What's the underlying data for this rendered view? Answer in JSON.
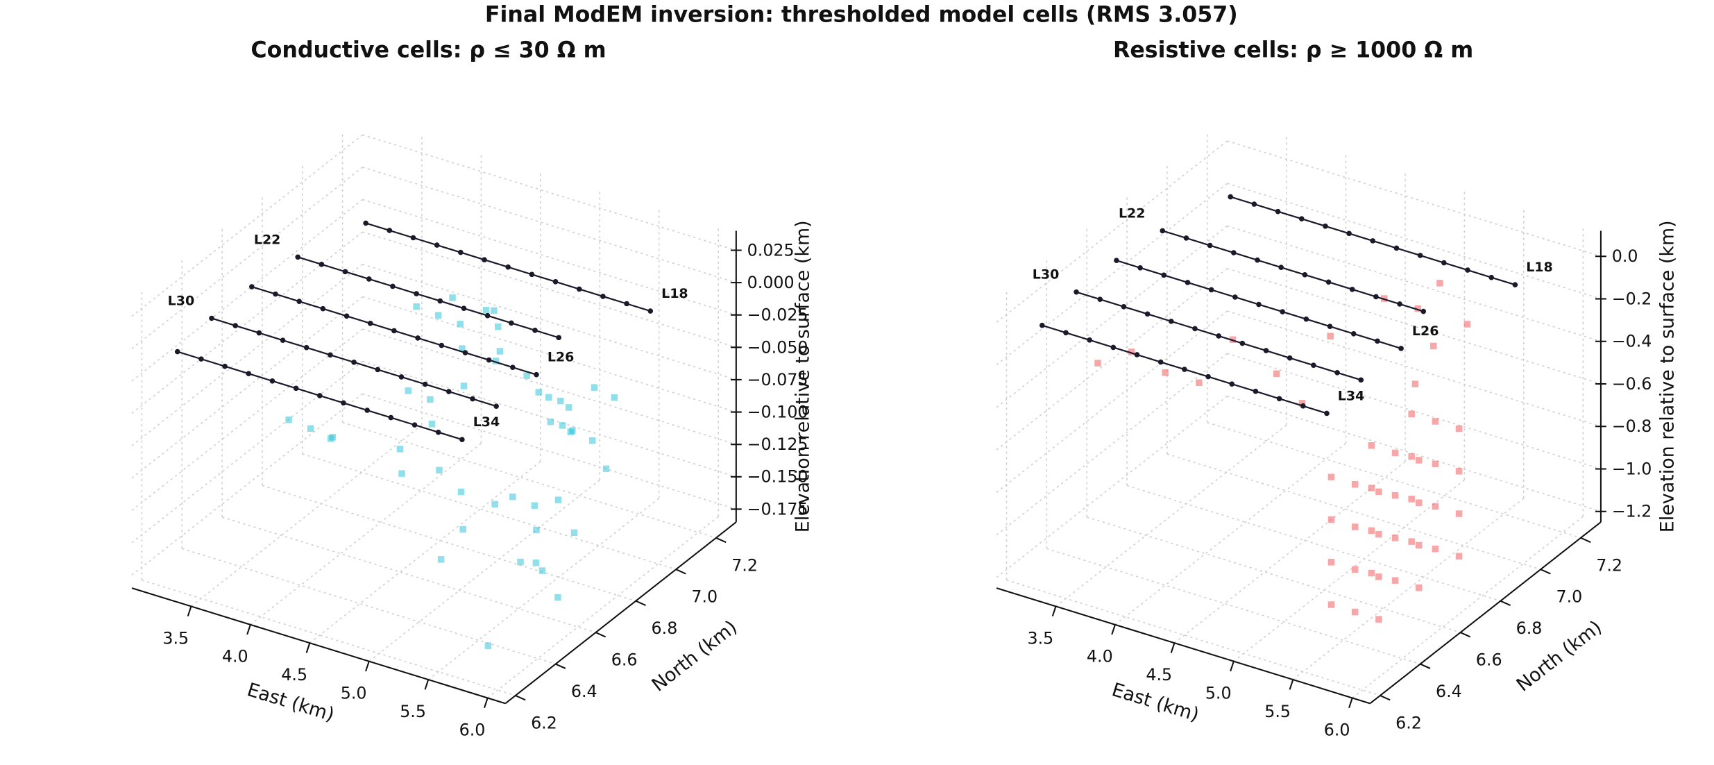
{
  "title": "Final ModEM inversion: thresholded model cells (RMS 3.057)",
  "profiles": [
    {
      "name": "L18",
      "north": 7.05,
      "elevation": 0,
      "label_side": "end",
      "east": [
        3.45,
        3.65,
        3.85,
        4.05,
        4.25,
        4.45,
        4.65,
        4.85,
        5.05,
        5.25,
        5.45,
        5.65,
        5.85
      ]
    },
    {
      "name": "L22",
      "north": 6.8,
      "elevation": 0,
      "label_side": "start",
      "east": [
        3.3,
        3.5,
        3.7,
        3.9,
        4.1,
        4.3,
        4.5,
        4.7,
        4.9,
        5.1,
        5.3,
        5.5
      ]
    },
    {
      "name": "L26",
      "north": 6.6,
      "elevation": 0,
      "label_side": "end",
      "east": [
        3.25,
        3.45,
        3.65,
        3.85,
        4.05,
        4.25,
        4.45,
        4.65,
        4.85,
        5.05,
        5.25,
        5.45,
        5.65
      ]
    },
    {
      "name": "L30",
      "north": 6.4,
      "elevation": 0,
      "label_side": "start",
      "east": [
        3.25,
        3.45,
        3.65,
        3.85,
        4.05,
        4.25,
        4.45,
        4.65,
        4.85,
        5.05,
        5.25,
        5.45,
        5.65
      ]
    },
    {
      "name": "L34",
      "north": 6.2,
      "elevation": 0,
      "label_side": "end",
      "east": [
        3.3,
        3.5,
        3.7,
        3.9,
        4.1,
        4.3,
        4.5,
        4.7,
        4.9,
        5.1,
        5.3,
        5.5,
        5.7
      ]
    }
  ],
  "chart_data": [
    {
      "type": "scatter3d",
      "title": "Conductive cells: ρ ≤ 30 Ω m",
      "color": "#22c0d8",
      "grid": true,
      "xlabel": "East (km)",
      "ylabel": "North (km)",
      "zlabel": "Elevation relative to surface (km)",
      "xlim": [
        3.0,
        6.15
      ],
      "ylim": [
        6.15,
        7.3
      ],
      "zlim": [
        -0.185,
        0.04
      ],
      "xticks": [
        3.5,
        {
          "value": 4,
          "label": "4.0"
        },
        4.5,
        {
          "value": 5,
          "label": "5.0"
        },
        5.5,
        {
          "value": 6,
          "label": "6.0"
        }
      ],
      "yticks": [
        6.2,
        6.4,
        6.6,
        6.8,
        {
          "value": 7,
          "label": "7.0"
        },
        7.2
      ],
      "zticks": [
        0.025,
        {
          "value": 0,
          "label": "0.000"
        },
        {
          "value": -0.025,
          "label": "−0.025"
        },
        {
          "value": -0.05,
          "label": "−0.050"
        },
        {
          "value": -0.075,
          "label": "−0.075"
        },
        {
          "value": -0.1,
          "label": "−0.100"
        },
        {
          "value": -0.125,
          "label": "−0.125"
        },
        {
          "value": -0.15,
          "label": "−0.150"
        },
        {
          "value": -0.175,
          "label": "−0.175"
        }
      ],
      "cells": {
        "east": [
          5.4,
          5.5,
          5.6,
          5.7,
          5.8,
          5.5,
          5.6,
          5.7,
          5.8,
          5.9,
          5.45,
          5.55,
          5.65,
          5.75,
          5.5,
          5.6,
          5.7,
          5.8,
          5.6,
          5.7,
          4.3,
          4.4,
          4.5,
          4.6,
          4.7,
          4.8,
          4.4,
          4.5,
          4.6,
          4.7,
          4.35,
          4.55,
          4.65,
          4.75,
          4.5,
          4.6,
          3.9,
          4.0,
          4.1,
          4.0,
          5.0,
          5.1,
          5.2,
          5.1,
          5.3,
          5.9,
          6.0,
          5.75
        ],
        "north": [
          6.7,
          6.7,
          6.75,
          6.7,
          6.8,
          6.85,
          6.8,
          6.85,
          6.9,
          6.8,
          6.6,
          6.65,
          6.6,
          6.65,
          6.75,
          6.7,
          6.75,
          6.7,
          6.55,
          6.6,
          6.8,
          6.85,
          6.9,
          6.85,
          6.95,
          6.9,
          6.7,
          6.75,
          6.7,
          6.8,
          6.95,
          7.0,
          7.0,
          6.95,
          6.6,
          6.55,
          6.4,
          6.45,
          6.5,
          6.55,
          6.5,
          6.55,
          6.5,
          6.45,
          6.6,
          6.45,
          6.5,
          6.3
        ],
        "elevation": [
          -0.02,
          -0.03,
          -0.04,
          -0.05,
          -0.03,
          -0.06,
          -0.07,
          -0.08,
          -0.05,
          -0.09,
          -0.1,
          -0.11,
          -0.12,
          -0.1,
          -0.04,
          -0.05,
          -0.06,
          -0.13,
          -0.14,
          -0.15,
          -0.01,
          -0.02,
          -0.03,
          -0.04,
          -0.02,
          -0.05,
          -0.06,
          -0.07,
          -0.08,
          -0.06,
          -0.02,
          -0.03,
          -0.04,
          -0.05,
          -0.09,
          -0.1,
          -0.06,
          -0.07,
          -0.08,
          -0.09,
          -0.08,
          -0.1,
          -0.12,
          -0.14,
          -0.11,
          -0.12,
          -0.15,
          -0.17
        ]
      }
    },
    {
      "type": "scatter3d",
      "title": "Resistive cells: ρ ≥ 1000 Ω m",
      "color": "#f05050",
      "grid": true,
      "xlabel": "East (km)",
      "ylabel": "North (km)",
      "zlabel": "Elevation relative to surface (km)",
      "xlim": [
        3.0,
        6.15
      ],
      "ylim": [
        6.15,
        7.3
      ],
      "zlim": [
        -1.25,
        0.12
      ],
      "xticks": [
        3.5,
        {
          "value": 4,
          "label": "4.0"
        },
        4.5,
        {
          "value": 5,
          "label": "5.0"
        },
        5.5,
        {
          "value": 6,
          "label": "6.0"
        }
      ],
      "yticks": [
        6.2,
        6.4,
        6.6,
        6.8,
        {
          "value": 7,
          "label": "7.0"
        },
        7.2
      ],
      "zticks": [
        {
          "value": 0,
          "label": "0.0"
        },
        {
          "value": -0.2,
          "label": "−0.2"
        },
        {
          "value": -0.4,
          "label": "−0.4"
        },
        {
          "value": -0.6,
          "label": "−0.6"
        },
        {
          "value": -0.8,
          "label": "−0.8"
        },
        {
          "value": -1,
          "label": "−1.0"
        },
        {
          "value": -1.2,
          "label": "−1.2"
        }
      ],
      "cells": {
        "east": [
          5.4,
          5.4,
          5.4,
          5.6,
          5.6,
          5.6,
          5.8,
          5.8,
          5.8,
          5.4,
          5.4,
          5.4,
          5.6,
          5.6,
          5.6,
          5.8,
          5.8,
          5.8,
          5.4,
          5.4,
          5.4,
          5.6,
          5.6,
          5.6,
          5.8,
          5.8,
          5.8,
          5.4,
          5.4,
          5.4,
          5.6,
          5.6,
          5.6,
          5.8,
          5.8,
          5.8,
          3.6,
          3.8,
          4.0,
          4.4,
          4.6,
          4.8,
          5.0,
          5.2,
          5.3,
          5.5,
          5.6,
          5.7,
          4.2,
          4.9
        ],
        "north": [
          6.4,
          6.6,
          6.8,
          6.4,
          6.6,
          6.8,
          6.4,
          6.6,
          6.8,
          6.4,
          6.6,
          6.8,
          6.4,
          6.6,
          6.8,
          6.4,
          6.6,
          6.8,
          6.4,
          6.6,
          6.8,
          6.4,
          6.6,
          6.8,
          6.4,
          6.6,
          6.8,
          6.4,
          6.6,
          6.8,
          6.4,
          6.6,
          6.8,
          6.4,
          6.6,
          6.8,
          6.3,
          6.35,
          6.4,
          6.5,
          6.6,
          6.75,
          6.9,
          6.95,
          7.0,
          6.85,
          6.7,
          6.9,
          6.45,
          6.55
        ],
        "elevation": [
          -0.5,
          -0.5,
          -0.5,
          -0.5,
          -0.5,
          -0.5,
          -0.5,
          -0.5,
          -0.5,
          -0.7,
          -0.7,
          -0.7,
          -0.7,
          -0.7,
          -0.7,
          -0.7,
          -0.7,
          -0.7,
          -0.9,
          -0.9,
          -0.9,
          -0.9,
          -0.9,
          -0.9,
          -0.9,
          -0.9,
          -0.9,
          -1.1,
          -1.1,
          -1.1,
          -1.1,
          -1.1,
          -1.1,
          -1.1,
          -1.1,
          -1.1,
          -0.2,
          -0.15,
          -0.25,
          -0.1,
          -0.3,
          -0.2,
          -0.1,
          -0.15,
          -0.05,
          -0.2,
          -0.25,
          -0.1,
          -0.3,
          -0.35
        ]
      }
    }
  ]
}
